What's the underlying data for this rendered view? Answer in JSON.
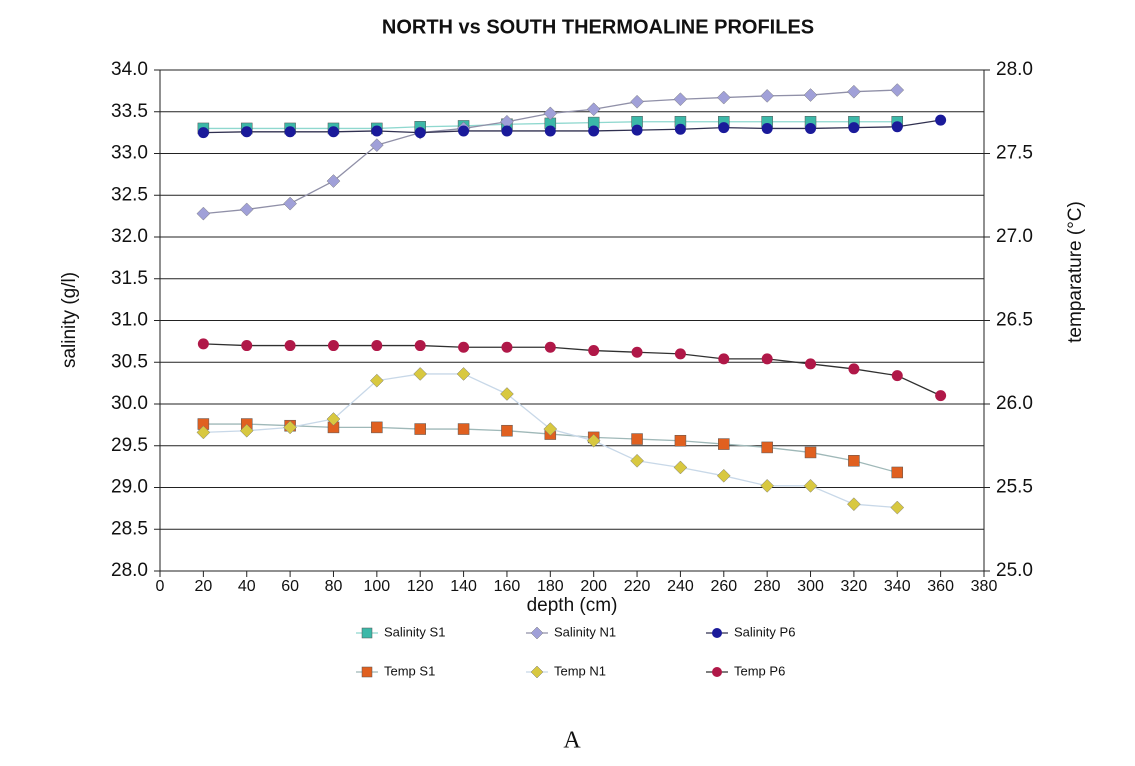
{
  "chart_data": {
    "type": "line",
    "title": "NORTH vs SOUTH  THERMOALINE PROFILES",
    "x_label": "depth  (cm)",
    "y_label": "salinity (g/l)",
    "y2_label": "temparature (°C)",
    "x": [
      20,
      40,
      60,
      80,
      100,
      120,
      140,
      160,
      180,
      200,
      220,
      240,
      260,
      280,
      300,
      320,
      340,
      360
    ],
    "xlim": [
      0,
      380
    ],
    "xticks": [
      0,
      20,
      40,
      60,
      80,
      100,
      120,
      140,
      160,
      180,
      200,
      220,
      240,
      260,
      280,
      300,
      320,
      340,
      360,
      380
    ],
    "ylim": [
      28,
      34
    ],
    "yticks": [
      {
        "value": 28,
        "label": "28.0"
      },
      {
        "value": 28.5,
        "label": "28.5"
      },
      {
        "value": 29,
        "label": "29.0"
      },
      {
        "value": 29.5,
        "label": "29.5"
      },
      {
        "value": 30,
        "label": "30.0"
      },
      {
        "value": 30.5,
        "label": "30.5"
      },
      {
        "value": 31,
        "label": "31.0"
      },
      {
        "value": 31.5,
        "label": "31.5"
      },
      {
        "value": 32,
        "label": "32.0"
      },
      {
        "value": 32.5,
        "label": "32.5"
      },
      {
        "value": 33,
        "label": "33.0"
      },
      {
        "value": 33.5,
        "label": "33.5"
      },
      {
        "value": 34,
        "label": "34.0"
      }
    ],
    "y2lim": [
      25,
      28
    ],
    "y2ticks": [
      {
        "value": 25,
        "label": "25.0"
      },
      {
        "value": 25.5,
        "label": "25.5"
      },
      {
        "value": 26,
        "label": "26.0"
      },
      {
        "value": 26.5,
        "label": "26.5"
      },
      {
        "value": 27,
        "label": "27.0"
      },
      {
        "value": 27.5,
        "label": "27.5"
      },
      {
        "value": 28,
        "label": "28.0"
      }
    ],
    "grid": true,
    "legend": "bottom",
    "series": [
      {
        "name": "Salinity S1",
        "color": "#3cb8a8",
        "line_color": "#8fd8cf",
        "marker": "square",
        "axis": "y",
        "values": [
          33.3,
          33.3,
          33.3,
          33.3,
          33.3,
          33.32,
          33.33,
          33.35,
          33.36,
          33.37,
          33.38,
          33.38,
          33.38,
          33.38,
          33.38,
          33.38,
          33.38,
          null
        ]
      },
      {
        "name": "Salinity  N1",
        "color": "#a0a0d8",
        "line_color": "#9090a8",
        "marker": "diamond",
        "axis": "y",
        "values": [
          32.28,
          32.33,
          32.4,
          32.67,
          33.1,
          33.25,
          33.3,
          33.38,
          33.48,
          33.53,
          33.62,
          33.65,
          33.67,
          33.69,
          33.7,
          33.74,
          33.76,
          null
        ]
      },
      {
        "name": "Salinity P6",
        "color": "#1a1a9a",
        "line_color": "#303050",
        "marker": "circle",
        "axis": "y",
        "values": [
          33.25,
          33.26,
          33.26,
          33.26,
          33.27,
          33.25,
          33.27,
          33.27,
          33.27,
          33.27,
          33.28,
          33.29,
          33.31,
          33.3,
          33.3,
          33.31,
          33.32,
          33.4
        ]
      },
      {
        "name": "Temp S1",
        "color": "#e06020",
        "line_color": "#9fb8b8",
        "marker": "square",
        "axis": "y2",
        "values": [
          25.88,
          25.88,
          25.87,
          25.86,
          25.86,
          25.85,
          25.85,
          25.84,
          25.82,
          25.8,
          25.79,
          25.78,
          25.76,
          25.74,
          25.71,
          25.66,
          25.59,
          null
        ]
      },
      {
        "name": "Temp N1",
        "color": "#d8c840",
        "line_color": "#c8d8e8",
        "marker": "diamond",
        "axis": "y2",
        "values": [
          25.83,
          25.84,
          25.86,
          25.91,
          26.14,
          26.18,
          26.18,
          26.06,
          25.85,
          25.78,
          25.66,
          25.62,
          25.57,
          25.51,
          25.51,
          25.4,
          25.38,
          null
        ]
      },
      {
        "name": "Temp P6",
        "color": "#b01848",
        "line_color": "#303030",
        "marker": "circle",
        "axis": "y2",
        "values": [
          26.36,
          26.35,
          26.35,
          26.35,
          26.35,
          26.35,
          26.34,
          26.34,
          26.34,
          26.32,
          26.31,
          26.3,
          26.27,
          26.27,
          26.24,
          26.21,
          26.17,
          26.05
        ]
      }
    ]
  },
  "caption": "A"
}
